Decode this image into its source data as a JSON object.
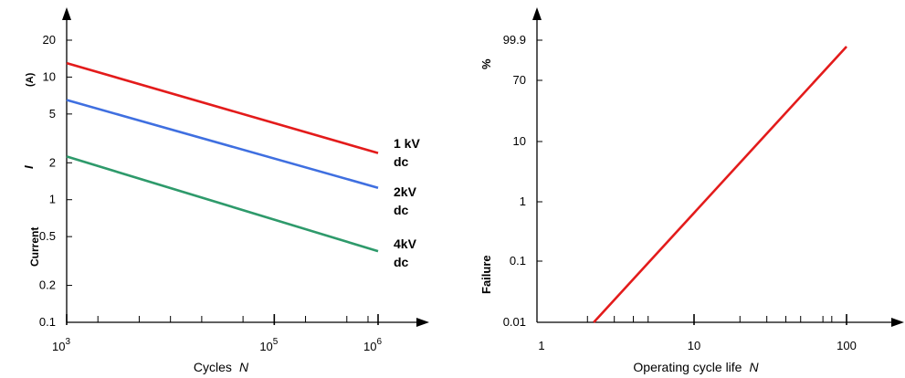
{
  "chart_data": [
    {
      "type": "line",
      "xlabel": "Cycles",
      "xlabel_var": "N",
      "ylabel_words": [
        "Current",
        "I",
        "(A)"
      ],
      "xscale": "log",
      "yscale": "log",
      "xlim": [
        1000,
        1000000
      ],
      "ylim": [
        0.1,
        30
      ],
      "x_ticks": [
        {
          "value": 1000,
          "base": "10",
          "exp": "3"
        },
        {
          "value": 100000,
          "base": "10",
          "exp": "5"
        },
        {
          "value": 1000000,
          "base": "10",
          "exp": "6"
        }
      ],
      "x_minor_ticks": [
        2000,
        5000,
        10000,
        20000,
        50000,
        200000,
        500000,
        800000
      ],
      "y_ticks": [
        "0.1",
        "0.2",
        "0.5",
        "1",
        "2",
        "5",
        "10",
        "20"
      ],
      "series": [
        {
          "label_lines": [
            "1 kV",
            "dc"
          ],
          "color": "#e31b1b",
          "x": [
            1000,
            1000000
          ],
          "y": [
            13,
            2.4
          ]
        },
        {
          "label_lines": [
            "2kV",
            "dc"
          ],
          "color": "#3f6fe0",
          "x": [
            1000,
            1000000
          ],
          "y": [
            6.5,
            1.25
          ]
        },
        {
          "label_lines": [
            "4kV",
            "dc"
          ],
          "color": "#2e9a6b",
          "x": [
            1000,
            1000000
          ],
          "y": [
            2.25,
            0.38
          ]
        }
      ],
      "grid": false
    },
    {
      "type": "line",
      "xlabel": "Operating cycle life",
      "xlabel_var": "N",
      "ylabel_words": [
        "Failure",
        "%"
      ],
      "xscale": "log",
      "yscale": "probability",
      "xlim": [
        1,
        200
      ],
      "x_ticks": [
        "1",
        "10",
        "100"
      ],
      "x_minor_ticks": [
        2,
        3,
        4,
        5,
        20,
        30,
        40,
        50,
        70,
        80
      ],
      "y_ticks": [
        "0.01",
        "0.1",
        "1",
        "10",
        "70",
        "99.9"
      ],
      "series": [
        {
          "color": "#e31b1b",
          "x": [
            2.2,
            100
          ],
          "y": [
            0.01,
            92
          ]
        }
      ],
      "grid": false
    }
  ]
}
